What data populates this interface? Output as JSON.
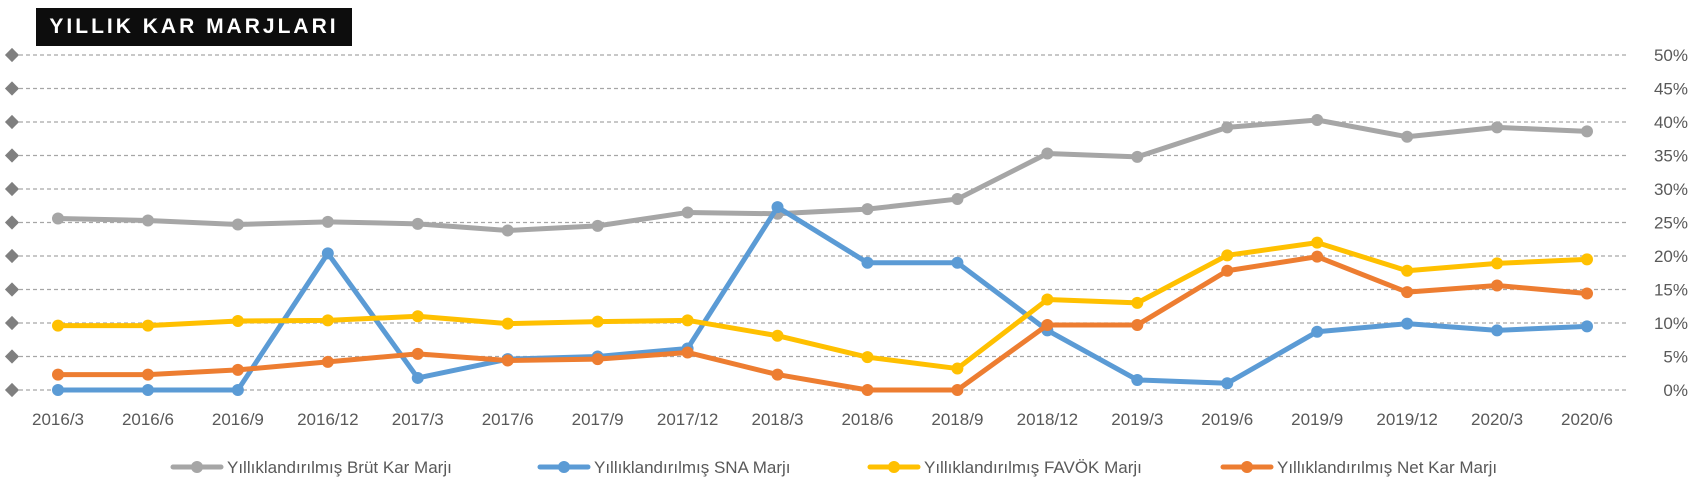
{
  "chart_data": {
    "type": "line",
    "title": "YILLIK KAR MARJLARI",
    "categories": [
      "2016/3",
      "2016/6",
      "2016/9",
      "2016/12",
      "2017/3",
      "2017/6",
      "2017/9",
      "2017/12",
      "2018/3",
      "2018/6",
      "2018/9",
      "2018/12",
      "2019/3",
      "2019/6",
      "2019/9",
      "2019/12",
      "2020/3",
      "2020/6"
    ],
    "y_ticks": [
      "0%",
      "5%",
      "10%",
      "15%",
      "20%",
      "25%",
      "30%",
      "35%",
      "40%",
      "45%",
      "50%"
    ],
    "ylim": [
      0,
      50
    ],
    "grid": true,
    "legend_position": "bottom",
    "series": [
      {
        "name": "Yıllıklandırılmış Brüt Kar Marjı",
        "color": "#a6a6a6",
        "values": [
          25.6,
          25.3,
          24.7,
          25.1,
          24.8,
          23.8,
          24.5,
          26.5,
          26.3,
          27.0,
          28.5,
          35.3,
          34.8,
          39.2,
          40.3,
          37.8,
          39.2,
          38.6
        ]
      },
      {
        "name": "Yıllıklandırılmış SNA Marjı",
        "color": "#5b9bd5",
        "values": [
          0.0,
          0.0,
          0.0,
          20.4,
          1.8,
          4.6,
          5.0,
          6.2,
          27.3,
          19.0,
          19.0,
          8.9,
          1.5,
          1.0,
          8.7,
          9.9,
          8.9,
          9.5
        ]
      },
      {
        "name": "Yıllıklandırılmış FAVÖK Marjı",
        "color": "#ffc000",
        "values": [
          9.6,
          9.6,
          10.3,
          10.4,
          11.0,
          9.9,
          10.2,
          10.4,
          8.1,
          4.9,
          3.2,
          13.5,
          13.0,
          20.1,
          22.0,
          17.8,
          18.9,
          19.5
        ]
      },
      {
        "name": "Yıllıklandırılmış Net Kar Marjı",
        "color": "#ed7d31",
        "values": [
          2.3,
          2.3,
          3.0,
          4.2,
          5.4,
          4.4,
          4.6,
          5.6,
          2.3,
          0.0,
          0.0,
          9.7,
          9.7,
          17.8,
          19.9,
          14.6,
          15.6,
          14.4
        ]
      }
    ]
  }
}
